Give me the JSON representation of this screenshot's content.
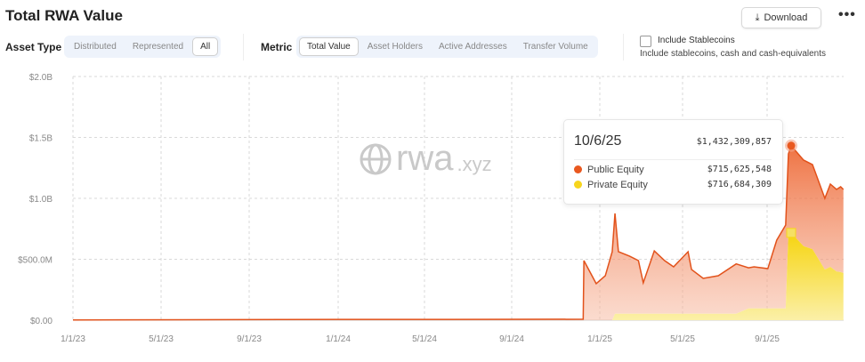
{
  "header": {
    "title": "Total RWA Value",
    "download_label": "Download",
    "more_label": "•••"
  },
  "controls": {
    "asset_type_label": "Asset Type",
    "asset_types": [
      "Distributed",
      "Represented",
      "All"
    ],
    "asset_type_selected": "All",
    "metric_label": "Metric",
    "metrics": [
      "Total Value",
      "Asset Holders",
      "Active Addresses",
      "Transfer Volume"
    ],
    "metric_selected": "Total Value",
    "stablecoins_checkbox_label": "Include Stablecoins",
    "stablecoins_checked": false,
    "stablecoins_description": "Include stablecoins, cash and cash-equivalents"
  },
  "watermark": "rwa.xyz",
  "tooltip": {
    "date": "10/6/25",
    "total": "$1,432,309,857",
    "rows": [
      {
        "name": "Public Equity",
        "value": "$715,625,548"
      },
      {
        "name": "Private Equity",
        "value": "$716,684,309"
      }
    ]
  },
  "chart_data": {
    "type": "area",
    "stacked": true,
    "title": "Total RWA Value",
    "xlabel": "",
    "ylabel": "",
    "x_ticks": [
      "1/1/23",
      "5/1/23",
      "9/1/23",
      "1/1/24",
      "5/1/24",
      "9/1/24",
      "1/1/25",
      "5/1/25",
      "9/1/25"
    ],
    "y_ticks": [
      "$0.00",
      "$500.0M",
      "$1.0B",
      "$1.5B",
      "$2.0B"
    ],
    "ylim_musd": [
      0,
      2000
    ],
    "grid": true,
    "x": [
      "1/1/23",
      "6/1/23",
      "1/1/24",
      "9/1/24",
      "12/9/24",
      "12/10/24",
      "12/27/24",
      "1/9/25",
      "1/19/25",
      "1/23/25",
      "1/28/25",
      "2/13/25",
      "2/26/25",
      "3/5/25",
      "3/21/25",
      "4/5/25",
      "4/18/25",
      "5/9/25",
      "5/14/25",
      "5/31/25",
      "6/22/25",
      "7/18/25",
      "8/5/25",
      "8/13/25",
      "9/2/25",
      "9/15/25",
      "9/28/25",
      "10/2/25",
      "10/6/25",
      "10/24/25",
      "11/6/25",
      "11/24/25",
      "12/2/25",
      "12/11/25",
      "12/17/25",
      "12/21/25"
    ],
    "series": [
      {
        "name": "Private Equity",
        "color": "#f7d51d",
        "values_musd": [
          0,
          0,
          0,
          0,
          0,
          0,
          0,
          0,
          0,
          53,
          53,
          53,
          53,
          53,
          53,
          53,
          53,
          53,
          53,
          53,
          53,
          53,
          97,
          97,
          97,
          97,
          97,
          718,
          716.7,
          608,
          583,
          416,
          438,
          400,
          395,
          387
        ]
      },
      {
        "name": "Public Equity",
        "color": "#e9581f",
        "values_musd": [
          2,
          4,
          6,
          7,
          8,
          489,
          300,
          365,
          562,
          823,
          509,
          473,
          436,
          254,
          516,
          436,
          385,
          509,
          363,
          290,
          312,
          409,
          333,
          341,
          326,
          560,
          684,
          647,
          715.6,
          706,
          694,
          584,
          679,
          673,
          700,
          686
        ]
      }
    ],
    "highlight": {
      "x": "10/6/25"
    }
  }
}
